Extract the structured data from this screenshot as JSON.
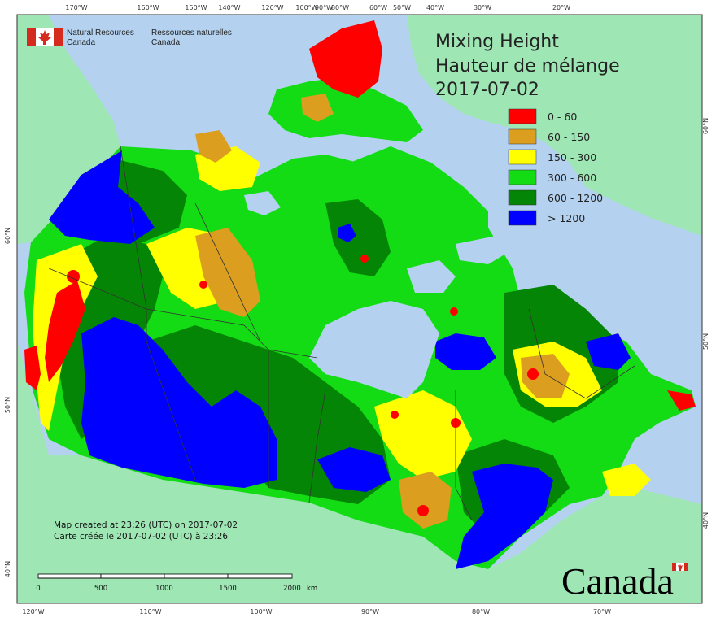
{
  "title": {
    "line1": "Mixing Height",
    "line2": "Hauteur de mélange",
    "date": "2017-07-02"
  },
  "agency": {
    "en_line1": "Natural Resources",
    "en_line2": "Canada",
    "fr_line1": "Ressources naturelles",
    "fr_line2": "Canada"
  },
  "legend": {
    "items": [
      {
        "label": "0 - 60",
        "color": "#ff0000"
      },
      {
        "label": "60 - 150",
        "color": "#dc9e1e"
      },
      {
        "label": "150 - 300",
        "color": "#ffff00"
      },
      {
        "label": "300 - 600",
        "color": "#14dc14"
      },
      {
        "label": "600 - 1200",
        "color": "#058505"
      },
      {
        "label": "> 1200",
        "color": "#0000ff"
      }
    ]
  },
  "credits": {
    "en": "Map created at 23:26 (UTC) on 2017-07-02",
    "fr": "Carte créée le 2017-07-02 (UTC) à 23:26"
  },
  "scale_bar": {
    "labels": [
      "0",
      "500",
      "1000",
      "1500",
      "2000"
    ],
    "unit": "km"
  },
  "wordmark": "Canada",
  "graticule": {
    "top": [
      "170°W",
      "160°W",
      "150°W",
      "140°W",
      "120°W",
      "100°W",
      "90°W",
      "80°W",
      "60°W",
      "50°W",
      "40°W",
      "30°W",
      "20°W"
    ],
    "bottom": [
      "120°W",
      "110°W",
      "100°W",
      "90°W",
      "80°W",
      "70°W"
    ],
    "left": [
      "60°N",
      "50°N",
      "40°N"
    ],
    "right": [
      "60°N",
      "50°N",
      "40°N"
    ]
  },
  "colors": {
    "ocean": "#b4d2f0",
    "foreign_land": "#9ee6b4",
    "border": "#333333"
  }
}
